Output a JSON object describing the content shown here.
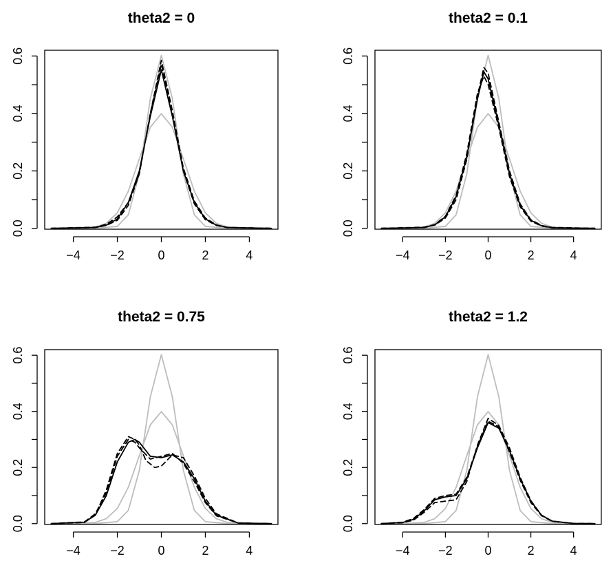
{
  "chart_data": [
    {
      "type": "line",
      "title": "theta2 = 0",
      "xlim": [
        -5.3,
        5.3
      ],
      "ylim": [
        -0.003,
        0.62
      ],
      "xticks": [
        -4,
        -2,
        0,
        2,
        4
      ],
      "yticks": [
        0.0,
        0.2,
        0.4,
        0.6
      ],
      "xtick_labels": [
        "−4",
        "−2",
        "0",
        "2",
        "4"
      ],
      "ytick_labels": [
        "0.0",
        "0.2",
        "0.4",
        "0.6"
      ],
      "grid": false,
      "series": [
        {
          "style": "gray-solid",
          "color": "#bdbdbd",
          "x": [
            -5,
            -4,
            -3,
            -2.5,
            -2,
            -1.5,
            -1,
            -0.5,
            0,
            0.5,
            1,
            1.5,
            2,
            2.5,
            3,
            4,
            5
          ],
          "y": [
            0.0,
            0.0001,
            0.0044,
            0.0175,
            0.054,
            0.1295,
            0.242,
            0.352,
            0.399,
            0.352,
            0.242,
            0.1295,
            0.054,
            0.0175,
            0.0044,
            0.0001,
            0.0
          ]
        },
        {
          "style": "gray-solid",
          "color": "#bdbdbd",
          "x": [
            -5,
            -3,
            -2,
            -1.5,
            -1,
            -0.5,
            0,
            0.5,
            1,
            1.5,
            2,
            3,
            5
          ],
          "y": [
            0.0,
            0.0,
            0.007,
            0.047,
            0.19,
            0.452,
            0.602,
            0.452,
            0.19,
            0.047,
            0.007,
            0.0,
            0.0
          ]
        },
        {
          "style": "black-solid",
          "color": "#000000",
          "x": [
            -5,
            -3,
            -2.5,
            -2,
            -1.5,
            -1,
            -0.5,
            0,
            0.5,
            1,
            1.5,
            2,
            2.5,
            3,
            5
          ],
          "y": [
            0.0,
            0.003,
            0.011,
            0.033,
            0.09,
            0.2,
            0.39,
            0.552,
            0.39,
            0.2,
            0.09,
            0.033,
            0.011,
            0.003,
            0.0
          ]
        },
        {
          "style": "black-dashed",
          "color": "#000000",
          "x": [
            -5,
            -3,
            -2.5,
            -2,
            -1.5,
            -1,
            -0.5,
            0,
            0.5,
            1,
            1.5,
            2,
            2.5,
            3,
            5
          ],
          "y": [
            0.0,
            0.004,
            0.014,
            0.04,
            0.09,
            0.19,
            0.4,
            0.572,
            0.395,
            0.2,
            0.085,
            0.03,
            0.01,
            0.003,
            0.0
          ]
        },
        {
          "style": "black-dashed",
          "color": "#000000",
          "x": [
            -5,
            -3,
            -2.5,
            -2,
            -1.5,
            -1,
            -0.5,
            0,
            0.5,
            1,
            1.5,
            2,
            2.5,
            3,
            5
          ],
          "y": [
            0.0,
            0.003,
            0.01,
            0.028,
            0.08,
            0.19,
            0.4,
            0.585,
            0.41,
            0.21,
            0.095,
            0.036,
            0.012,
            0.003,
            0.0
          ]
        }
      ]
    },
    {
      "type": "line",
      "title": "theta2 = 0.1",
      "xlim": [
        -5.3,
        5.3
      ],
      "ylim": [
        -0.003,
        0.62
      ],
      "xticks": [
        -4,
        -2,
        0,
        2,
        4
      ],
      "yticks": [
        0.0,
        0.2,
        0.4,
        0.6
      ],
      "xtick_labels": [
        "−4",
        "−2",
        "0",
        "2",
        "4"
      ],
      "ytick_labels": [
        "0.0",
        "0.2",
        "0.4",
        "0.6"
      ],
      "grid": false,
      "series": [
        {
          "style": "gray-solid",
          "color": "#bdbdbd",
          "x": [
            -5,
            -4,
            -3,
            -2.5,
            -2,
            -1.5,
            -1,
            -0.5,
            0,
            0.5,
            1,
            1.5,
            2,
            2.5,
            3,
            4,
            5
          ],
          "y": [
            0.0,
            0.0001,
            0.0044,
            0.0175,
            0.054,
            0.1295,
            0.242,
            0.352,
            0.399,
            0.352,
            0.242,
            0.1295,
            0.054,
            0.0175,
            0.0044,
            0.0001,
            0.0
          ]
        },
        {
          "style": "gray-solid",
          "color": "#bdbdbd",
          "x": [
            -5,
            -3,
            -2,
            -1.5,
            -1,
            -0.5,
            0,
            0.5,
            1,
            1.5,
            2,
            3,
            5
          ],
          "y": [
            0.0,
            0.0,
            0.007,
            0.047,
            0.19,
            0.452,
            0.602,
            0.452,
            0.19,
            0.047,
            0.007,
            0.0,
            0.0
          ]
        },
        {
          "style": "black-solid",
          "color": "#000000",
          "x": [
            -5,
            -3,
            -2.5,
            -2,
            -1.5,
            -1,
            -0.5,
            -0.2,
            0,
            0.5,
            1,
            1.5,
            2,
            2.5,
            3,
            5
          ],
          "y": [
            0.0,
            0.003,
            0.012,
            0.04,
            0.11,
            0.25,
            0.45,
            0.545,
            0.52,
            0.36,
            0.19,
            0.08,
            0.028,
            0.009,
            0.002,
            0.0
          ]
        },
        {
          "style": "black-dashed",
          "color": "#000000",
          "x": [
            -5,
            -3,
            -2.5,
            -2,
            -1.5,
            -1,
            -0.5,
            -0.2,
            0,
            0.5,
            1,
            1.5,
            2,
            2.5,
            3,
            5
          ],
          "y": [
            0.0,
            0.003,
            0.011,
            0.036,
            0.1,
            0.24,
            0.46,
            0.56,
            0.54,
            0.37,
            0.2,
            0.085,
            0.03,
            0.01,
            0.003,
            0.0
          ]
        },
        {
          "style": "black-dashed",
          "color": "#000000",
          "x": [
            -5,
            -3,
            -2.5,
            -2,
            -1.5,
            -1,
            -0.5,
            -0.2,
            0,
            0.5,
            1,
            1.5,
            2,
            2.5,
            3,
            5
          ],
          "y": [
            0.0,
            0.004,
            0.013,
            0.042,
            0.115,
            0.26,
            0.47,
            0.53,
            0.5,
            0.35,
            0.18,
            0.075,
            0.025,
            0.008,
            0.002,
            0.0
          ]
        }
      ]
    },
    {
      "type": "line",
      "title": "theta2 = 0.75",
      "xlim": [
        -5.3,
        5.3
      ],
      "ylim": [
        -0.003,
        0.62
      ],
      "xticks": [
        -4,
        -2,
        0,
        2,
        4
      ],
      "yticks": [
        0.0,
        0.2,
        0.4,
        0.6
      ],
      "xtick_labels": [
        "−4",
        "−2",
        "0",
        "2",
        "4"
      ],
      "ytick_labels": [
        "0.0",
        "0.2",
        "0.4",
        "0.6"
      ],
      "grid": false,
      "series": [
        {
          "style": "gray-solid",
          "color": "#bdbdbd",
          "x": [
            -5,
            -4,
            -3,
            -2.5,
            -2,
            -1.5,
            -1,
            -0.5,
            0,
            0.5,
            1,
            1.5,
            2,
            2.5,
            3,
            4,
            5
          ],
          "y": [
            0.0,
            0.0001,
            0.0044,
            0.0175,
            0.054,
            0.1295,
            0.242,
            0.352,
            0.399,
            0.352,
            0.242,
            0.1295,
            0.054,
            0.0175,
            0.0044,
            0.0001,
            0.0
          ]
        },
        {
          "style": "gray-solid",
          "color": "#bdbdbd",
          "x": [
            -5,
            -3,
            -2,
            -1.5,
            -1,
            -0.5,
            0,
            0.5,
            1,
            1.5,
            2,
            3,
            5
          ],
          "y": [
            0.0,
            0.0,
            0.007,
            0.047,
            0.19,
            0.452,
            0.602,
            0.452,
            0.19,
            0.047,
            0.007,
            0.0,
            0.0
          ]
        },
        {
          "style": "black-solid",
          "color": "#000000",
          "x": [
            -5,
            -3.5,
            -3,
            -2.5,
            -2,
            -1.5,
            -1.2,
            -1,
            -0.5,
            0,
            0.5,
            1,
            1.5,
            2,
            2.5,
            3.5,
            5
          ],
          "y": [
            0.0,
            0.005,
            0.03,
            0.1,
            0.22,
            0.29,
            0.3,
            0.29,
            0.24,
            0.235,
            0.245,
            0.22,
            0.16,
            0.08,
            0.03,
            0.002,
            0.0
          ]
        },
        {
          "style": "black-dashed",
          "color": "#000000",
          "x": [
            -5,
            -3.5,
            -3,
            -2.5,
            -2,
            -1.5,
            -1.2,
            -1,
            -0.7,
            -0.3,
            0,
            0.5,
            1,
            1.5,
            2,
            2.5,
            3.5,
            5
          ],
          "y": [
            0.0,
            0.004,
            0.03,
            0.12,
            0.25,
            0.31,
            0.3,
            0.28,
            0.225,
            0.2,
            0.205,
            0.245,
            0.235,
            0.17,
            0.09,
            0.035,
            0.002,
            0.0
          ]
        },
        {
          "style": "black-dashed",
          "color": "#000000",
          "x": [
            -5,
            -3.5,
            -3,
            -2.5,
            -2,
            -1.5,
            -1.2,
            -1,
            -0.5,
            0,
            0.5,
            1,
            1.5,
            2,
            2.5,
            3.5,
            5
          ],
          "y": [
            0.0,
            0.006,
            0.035,
            0.11,
            0.24,
            0.3,
            0.29,
            0.27,
            0.23,
            0.24,
            0.25,
            0.215,
            0.15,
            0.075,
            0.028,
            0.002,
            0.0
          ]
        }
      ]
    },
    {
      "type": "line",
      "title": "theta2 = 1.2",
      "xlim": [
        -5.3,
        5.3
      ],
      "ylim": [
        -0.003,
        0.62
      ],
      "xticks": [
        -4,
        -2,
        0,
        2,
        4
      ],
      "yticks": [
        0.0,
        0.2,
        0.4,
        0.6
      ],
      "xtick_labels": [
        "−4",
        "−2",
        "0",
        "2",
        "4"
      ],
      "ytick_labels": [
        "0.0",
        "0.2",
        "0.4",
        "0.6"
      ],
      "grid": false,
      "series": [
        {
          "style": "gray-solid",
          "color": "#bdbdbd",
          "x": [
            -5,
            -4,
            -3,
            -2.5,
            -2,
            -1.5,
            -1,
            -0.5,
            0,
            0.5,
            1,
            1.5,
            2,
            2.5,
            3,
            4,
            5
          ],
          "y": [
            0.0,
            0.0001,
            0.0044,
            0.0175,
            0.054,
            0.1295,
            0.242,
            0.352,
            0.399,
            0.352,
            0.242,
            0.1295,
            0.054,
            0.0175,
            0.0044,
            0.0001,
            0.0
          ]
        },
        {
          "style": "gray-solid",
          "color": "#bdbdbd",
          "x": [
            -5,
            -3,
            -2,
            -1.5,
            -1,
            -0.5,
            0,
            0.5,
            1,
            1.5,
            2,
            3,
            5
          ],
          "y": [
            0.0,
            0.0,
            0.007,
            0.047,
            0.19,
            0.452,
            0.602,
            0.452,
            0.19,
            0.047,
            0.007,
            0.0,
            0.0
          ]
        },
        {
          "style": "black-solid",
          "color": "#000000",
          "x": [
            -5,
            -4,
            -3.5,
            -3,
            -2.5,
            -2,
            -1.5,
            -1,
            -0.5,
            0,
            0.5,
            1,
            1.5,
            2,
            2.5,
            3,
            4,
            5
          ],
          "y": [
            0.0,
            0.004,
            0.015,
            0.045,
            0.085,
            0.095,
            0.1,
            0.16,
            0.27,
            0.36,
            0.34,
            0.26,
            0.16,
            0.08,
            0.03,
            0.009,
            0.0005,
            0.0
          ]
        },
        {
          "style": "black-dashed",
          "color": "#000000",
          "x": [
            -5,
            -4,
            -3.5,
            -3,
            -2.5,
            -2,
            -1.5,
            -1,
            -0.5,
            0,
            0.5,
            1,
            1.5,
            2,
            2.5,
            3,
            4,
            5
          ],
          "y": [
            0.0,
            0.003,
            0.012,
            0.04,
            0.075,
            0.08,
            0.085,
            0.15,
            0.28,
            0.375,
            0.35,
            0.27,
            0.165,
            0.082,
            0.03,
            0.009,
            0.0005,
            0.0
          ]
        },
        {
          "style": "black-dashed",
          "color": "#000000",
          "x": [
            -5,
            -4,
            -3.5,
            -3,
            -2.5,
            -2,
            -1.5,
            -1,
            -0.5,
            0,
            0.5,
            1,
            1.5,
            2,
            2.5,
            3,
            4,
            5
          ],
          "y": [
            0.0,
            0.005,
            0.018,
            0.05,
            0.09,
            0.1,
            0.105,
            0.165,
            0.275,
            0.365,
            0.345,
            0.255,
            0.155,
            0.075,
            0.028,
            0.008,
            0.0005,
            0.0
          ]
        }
      ]
    }
  ]
}
